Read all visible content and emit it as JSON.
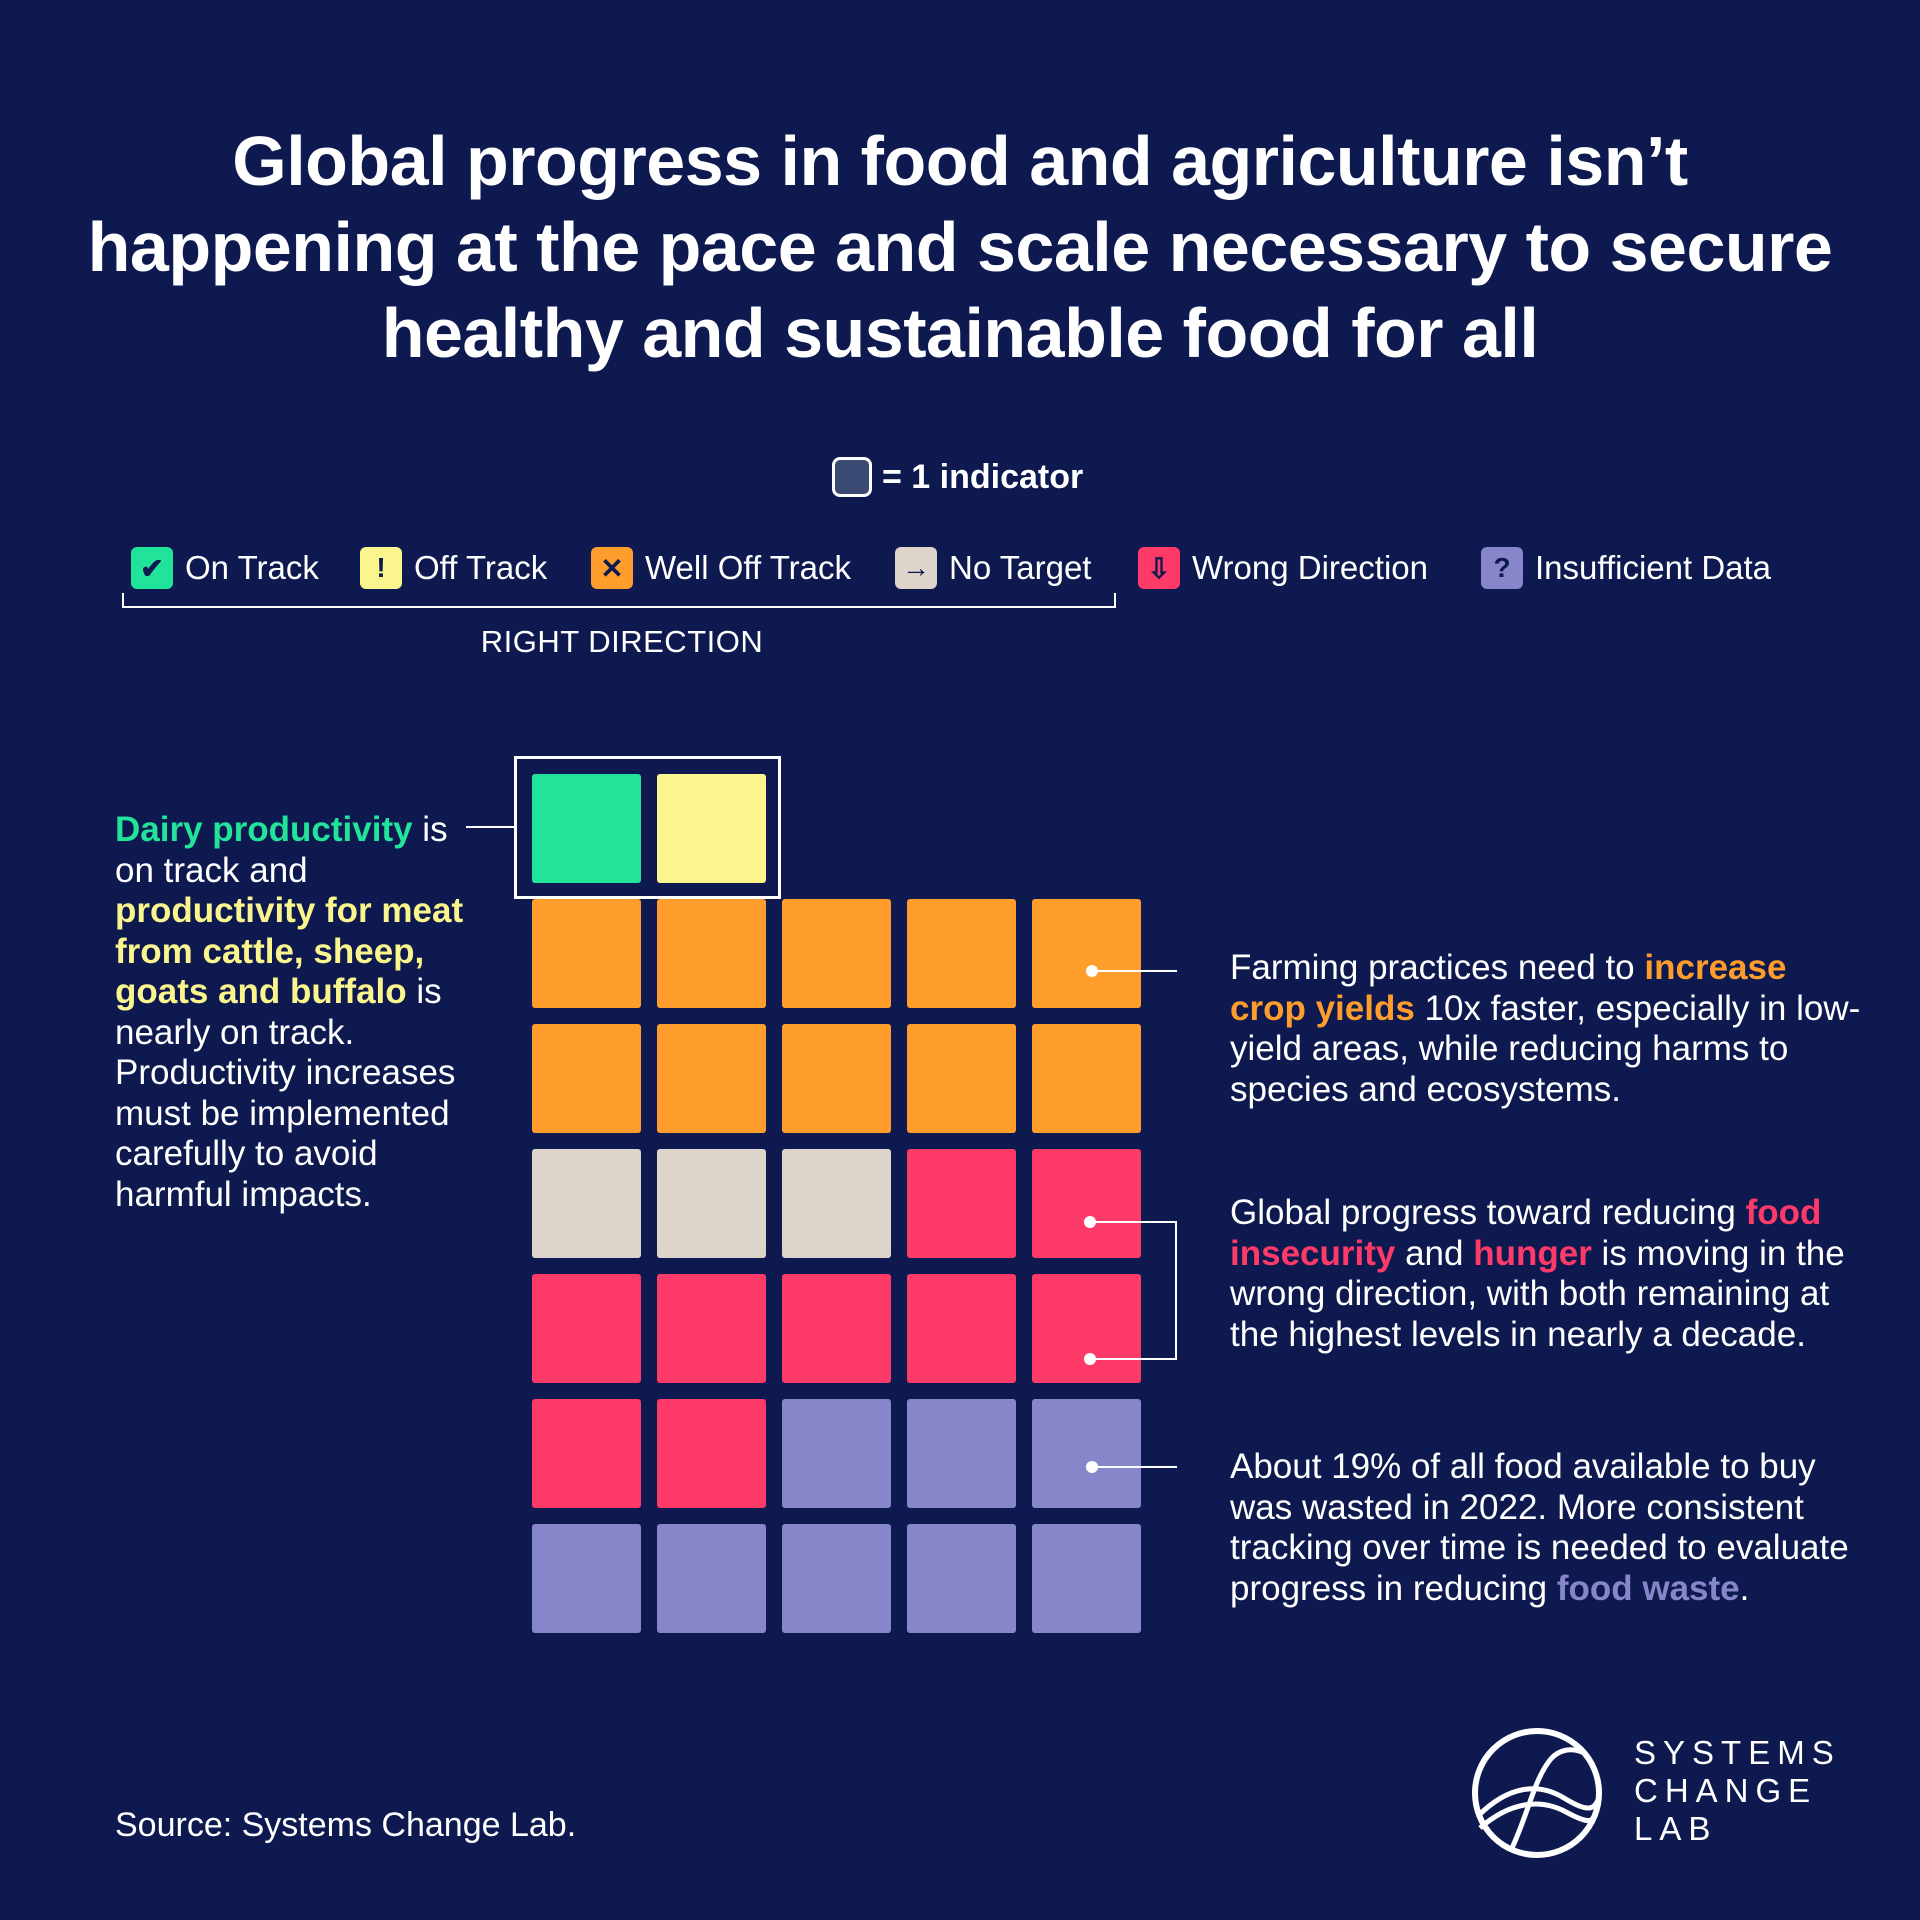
{
  "title": "Global progress in food and agriculture isn’t happening at the pace and scale necessary to secure healthy and sustainable food for all",
  "unit_label": "= 1 indicator",
  "legend": [
    {
      "key": "on_track",
      "label": "On Track",
      "icon": "checkmark-icon",
      "glyph": "✔",
      "color": "#22e39a"
    },
    {
      "key": "off_track",
      "label": "Off Track",
      "icon": "exclamation-icon",
      "glyph": "!",
      "color": "#fbf58e"
    },
    {
      "key": "well_off_track",
      "label": "Well Off Track",
      "icon": "x-icon",
      "glyph": "✕",
      "color": "#fe9d2c"
    },
    {
      "key": "no_target",
      "label": "No Target",
      "icon": "arrow-right-icon",
      "glyph": "→",
      "color": "#ddd5cc"
    },
    {
      "key": "wrong_direction",
      "label": "Wrong Direction",
      "icon": "arrow-down-icon",
      "glyph": "⇩",
      "color": "#fe3a68"
    },
    {
      "key": "insufficient_data",
      "label": "Insufficient Data",
      "icon": "question-icon",
      "glyph": "?",
      "color": "#8886ca"
    }
  ],
  "bracket_label": "RIGHT DIRECTION",
  "chart_data": {
    "type": "waffle",
    "unit": "1 indicator",
    "counts": {
      "On Track": 1,
      "Off Track": 1,
      "Well Off Track": 10,
      "No Target": 3,
      "Wrong Direction": 9,
      "Insufficient Data": 8
    },
    "rows": [
      [
        "On Track",
        "Off Track"
      ],
      [
        "Well Off Track",
        "Well Off Track",
        "Well Off Track",
        "Well Off Track",
        "Well Off Track"
      ],
      [
        "Well Off Track",
        "Well Off Track",
        "Well Off Track",
        "Well Off Track",
        "Well Off Track"
      ],
      [
        "No Target",
        "No Target",
        "No Target",
        "Wrong Direction",
        "Wrong Direction"
      ],
      [
        "Wrong Direction",
        "Wrong Direction",
        "Wrong Direction",
        "Wrong Direction",
        "Wrong Direction"
      ],
      [
        "Wrong Direction",
        "Wrong Direction",
        "Insufficient Data",
        "Insufficient Data",
        "Insufficient Data"
      ],
      [
        "Insufficient Data",
        "Insufficient Data",
        "Insufficient Data",
        "Insufficient Data",
        "Insufficient Data"
      ]
    ]
  },
  "annotations": {
    "dairy": {
      "highlight1": "Dairy productivity",
      "text1": " is on track and ",
      "highlight2": "productivity for meat from cattle, sheep, goats and buffalo",
      "text2": " is nearly on track. Productivity increases must be implemented carefully to avoid harmful impacts.",
      "color1": "#22e39a",
      "color2": "#fbf58e"
    },
    "crop_yields": {
      "text1": "Farming practices need to ",
      "highlight": "increase crop yields",
      "text2": " 10x faster, especially in low-yield areas, while reducing harms to species and ecosystems.",
      "color": "#fe9d2c"
    },
    "hunger": {
      "text1": "Global progress toward reducing ",
      "highlight1": "food insecurity",
      "text2": " and ",
      "highlight2": "hunger",
      "text3": " is moving in the wrong direction, with both remaining at the highest levels in nearly a decade.",
      "color": "#fe3a68"
    },
    "food_waste": {
      "text1": "About 19% of all food available to buy was wasted in 2022. More consistent tracking over time is needed to evaluate progress in reducing ",
      "highlight": "food waste",
      "text2": ".",
      "color": "#8886ca"
    }
  },
  "source": "Source: Systems Change Lab.",
  "logo": {
    "line1": "SYSTEMS",
    "line2": "CHANGE",
    "line3": "LAB"
  },
  "colors": {
    "background": "#0e1a4f",
    "text": "#ffffff"
  }
}
